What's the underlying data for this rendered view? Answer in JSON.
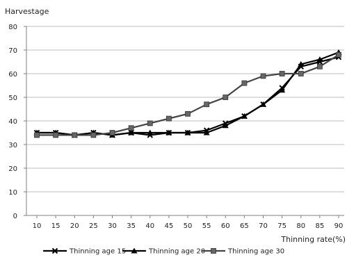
{
  "chart_data": {
    "type": "line",
    "ylabel": "Harvestage",
    "xlabel": "Thinning rate(%)",
    "x": [
      10,
      15,
      20,
      25,
      30,
      35,
      40,
      45,
      50,
      55,
      60,
      65,
      70,
      75,
      80,
      85,
      90
    ],
    "x_tick_labels": [
      "10",
      "15",
      "20",
      "25",
      "30",
      "35",
      "40",
      "45",
      "50",
      "55",
      "60",
      "65",
      "70",
      "75",
      "80",
      "85",
      "90"
    ],
    "ylim": [
      0,
      80
    ],
    "y_ticks": [
      0,
      10,
      20,
      30,
      40,
      50,
      60,
      70,
      80
    ],
    "y_tick_labels": [
      "0",
      "10",
      "20",
      "30",
      "40",
      "50",
      "60",
      "70",
      "80"
    ],
    "grid": true,
    "legend_position": "bottom",
    "series": [
      {
        "name": "Thinning age 15",
        "marker": "x",
        "color": "#000000",
        "values": [
          35,
          35,
          34,
          35,
          34,
          35,
          34,
          35,
          35,
          36,
          39,
          42,
          47,
          54,
          63,
          65,
          67
        ]
      },
      {
        "name": "Thinning age 20",
        "marker": "triangle",
        "color": "#000000",
        "values": [
          35,
          35,
          34,
          35,
          34,
          35,
          35,
          35,
          35,
          35,
          38,
          42,
          47,
          53,
          64,
          66,
          69
        ]
      },
      {
        "name": "Thinning age 30",
        "marker": "square",
        "color": "#444444",
        "values": [
          34,
          34,
          34,
          34,
          35,
          37,
          39,
          41,
          43,
          47,
          50,
          56,
          59,
          60,
          60,
          63,
          68
        ]
      }
    ]
  }
}
